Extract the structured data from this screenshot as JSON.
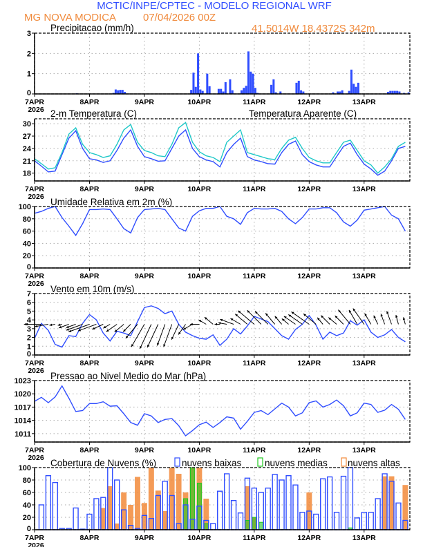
{
  "header": {
    "title": "MCTIC/INPE/CPTEC - MODELO REGIONAL WRF",
    "location": "MG NOVA MODICA",
    "run": "07/04/2026 00Z",
    "coords": "41.5014W 18.4372S 342m"
  },
  "colors": {
    "title": "#2f4dff",
    "location": "#f08a3c",
    "blue": "#2f4dff",
    "cyan": "#1fc8c8",
    "green": "#1ec81e",
    "orange": "#f28a3a",
    "grid": "#aaaaaa"
  },
  "x_axis": {
    "labels": [
      "7APR",
      "8APR",
      "9APR",
      "10APR",
      "11APR",
      "12APR",
      "13APR"
    ],
    "year": "2026",
    "time_start": "2026-04-07 00Z",
    "xlim_hours": [
      0,
      164
    ]
  },
  "chart_data": [
    {
      "type": "bar",
      "title": "Precipitacao (mm/h)",
      "ylim": [
        0,
        3
      ],
      "yticks": [
        0,
        1,
        2,
        3
      ],
      "grid": true,
      "interval_hours": 1,
      "values_by_hour": [
        [
          18,
          0.03
        ],
        [
          34,
          0.05
        ],
        [
          35,
          0.22
        ],
        [
          36,
          0.18
        ],
        [
          37,
          0.2
        ],
        [
          38,
          0.2
        ],
        [
          39,
          0.1
        ],
        [
          68,
          0.2
        ],
        [
          69,
          1.05
        ],
        [
          70,
          0.35
        ],
        [
          71,
          2.0
        ],
        [
          72,
          0.22
        ],
        [
          73,
          0.15
        ],
        [
          75,
          1.0
        ],
        [
          76,
          0.38
        ],
        [
          80,
          0.25
        ],
        [
          81,
          0.25
        ],
        [
          82,
          0.12
        ],
        [
          83,
          0.58
        ],
        [
          85,
          0.72
        ],
        [
          86,
          0.18
        ],
        [
          90,
          0.18
        ],
        [
          91,
          0.3
        ],
        [
          92,
          0.4
        ],
        [
          93,
          2.1
        ],
        [
          94,
          1.1
        ],
        [
          95,
          1.0
        ],
        [
          96,
          0.3
        ],
        [
          97,
          0.05
        ],
        [
          103,
          0.45
        ],
        [
          104,
          0.72
        ],
        [
          105,
          0.08
        ],
        [
          107,
          0.12
        ],
        [
          114,
          0.55
        ],
        [
          115,
          0.65
        ],
        [
          116,
          0.18
        ],
        [
          117,
          0.12
        ],
        [
          130,
          0.08
        ],
        [
          132,
          0.12
        ],
        [
          133,
          0.12
        ],
        [
          134,
          0.18
        ],
        [
          137,
          0.15
        ],
        [
          138,
          1.2
        ],
        [
          139,
          0.5
        ],
        [
          140,
          0.35
        ],
        [
          141,
          0.55
        ],
        [
          154,
          0.1
        ],
        [
          155,
          0.15
        ],
        [
          156,
          0.15
        ],
        [
          157,
          0.15
        ],
        [
          158,
          0.15
        ],
        [
          159,
          0.12
        ],
        [
          161,
          0.05
        ],
        [
          163,
          0.08
        ]
      ]
    },
    {
      "type": "line",
      "title": "2-m Temperatura (C)",
      "ylim": [
        16.1,
        31.2
      ],
      "yticks": [
        18,
        21,
        24,
        27,
        30
      ],
      "grid": true,
      "interval_hours": 3,
      "series": [
        {
          "name": "2-m Temperatura (C)",
          "color": "blue",
          "values": [
            21,
            19.7,
            18.3,
            18.5,
            22.5,
            26.5,
            28.3,
            24,
            21.5,
            21.2,
            20.6,
            21,
            23.5,
            26.5,
            28.5,
            24.5,
            22,
            21.5,
            20.9,
            21,
            24,
            27,
            28.5,
            24,
            22,
            21.2,
            20.8,
            19.5,
            23,
            25,
            26.5,
            22,
            21.2,
            20.8,
            20.3,
            20.2,
            23,
            25,
            25.8,
            22.5,
            20.8,
            20,
            19.5,
            19.5,
            22,
            24.5,
            25.3,
            22.5,
            20.2,
            19,
            17.5,
            18.5,
            21,
            24,
            24.5
          ]
        },
        {
          "name": "Temperatura Aparente (C)",
          "color": "cyan",
          "values": [
            21.5,
            20.3,
            19,
            19.3,
            23,
            27.5,
            29,
            25,
            23,
            22.5,
            21.8,
            22.2,
            25,
            28.5,
            29.8,
            25.5,
            23.5,
            23,
            22.2,
            22,
            25,
            29,
            30.3,
            25.5,
            23.2,
            22.2,
            21.8,
            20.8,
            25.5,
            27,
            28.5,
            23,
            22.5,
            22,
            21.5,
            21.3,
            24,
            26,
            26.7,
            24,
            21.8,
            21,
            20.5,
            20.5,
            23,
            25.5,
            26,
            23.5,
            21,
            20,
            18,
            19.5,
            21.5,
            24.5,
            25.5
          ]
        }
      ]
    },
    {
      "type": "line",
      "title": "Umidade Relativa em 2m (%)",
      "ylim": [
        0,
        100
      ],
      "yticks": [
        0,
        20,
        40,
        60,
        80,
        100
      ],
      "grid": true,
      "interval_hours": 3,
      "series": [
        {
          "color": "blue",
          "values": [
            89,
            92,
            97,
            100,
            82,
            68,
            53,
            72,
            95,
            95,
            96,
            95,
            80,
            64,
            57,
            82,
            95,
            96,
            97,
            95,
            80,
            65,
            60,
            84,
            93,
            97,
            97,
            100,
            84,
            80,
            71,
            90,
            97,
            96,
            96,
            97,
            92,
            80,
            72,
            82,
            96,
            96,
            98,
            98,
            90,
            75,
            68,
            78,
            94,
            96,
            98,
            100,
            86,
            80,
            60
          ]
        }
      ]
    },
    {
      "type": "line",
      "title": "Vento em 10m (m/s)",
      "ylim": [
        0,
        7
      ],
      "yticks": [
        0,
        1,
        2,
        3,
        4,
        5,
        6,
        7
      ],
      "grid": true,
      "interval_hours": 3,
      "series": [
        {
          "color": "blue",
          "values": [
            1.9,
            3.6,
            2.8,
            1.2,
            0.9,
            2.2,
            2.1,
            3.6,
            4.6,
            4,
            2.5,
            1.6,
            2.7,
            2.5,
            2.2,
            3.8,
            5.4,
            5.6,
            5.3,
            4.7,
            5,
            3.5,
            2.6,
            2.2,
            1.9,
            1.8,
            2.3,
            1.1,
            1.8,
            3,
            2.4,
            3.3,
            4.4,
            4.1,
            3.8,
            3,
            2.2,
            1.8,
            2.9,
            3.5,
            4.5,
            3.4,
            1.8,
            2.6,
            2.2,
            2.5,
            3.9,
            3.4,
            4,
            2.6,
            2,
            2.3,
            2.9,
            2,
            1.5
          ]
        }
      ],
      "wind_direction_from_deg": [
        90,
        90,
        80,
        80,
        75,
        70,
        70,
        70,
        70,
        70,
        65,
        60,
        55,
        50,
        45,
        40,
        30,
        25,
        25,
        20,
        20,
        25,
        35,
        60,
        90,
        120,
        130,
        90,
        100,
        110,
        120,
        130,
        130,
        135,
        135,
        140,
        140,
        130,
        125,
        125,
        125,
        130,
        140,
        135,
        130,
        135,
        140,
        150,
        145,
        150,
        155,
        160,
        160,
        165,
        165
      ],
      "arrow_baseline": 3.5
    },
    {
      "type": "line",
      "title": "Pressao ao Nivel Medio do Mar (hPa)",
      "ylim": [
        1009.1,
        1023
      ],
      "yticks": [
        1011,
        1014,
        1017,
        1020,
        1023
      ],
      "grid": true,
      "interval_hours": 3,
      "series": [
        {
          "color": "blue",
          "values": [
            1018.3,
            1019.2,
            1018.0,
            1019.3,
            1021.8,
            1019,
            1016,
            1016.2,
            1017.8,
            1017.8,
            1018.2,
            1017.2,
            1017.3,
            1015.5,
            1013.5,
            1012.9,
            1015.5,
            1015,
            1013.5,
            1014.2,
            1014.4,
            1012.8,
            1010.5,
            1011.7,
            1013,
            1013.6,
            1012.4,
            1013.5,
            1014.8,
            1014.5,
            1012,
            1013.8,
            1015.8,
            1016.2,
            1015.3,
            1016.6,
            1017.9,
            1017,
            1015,
            1015.7,
            1018,
            1018.4,
            1017,
            1017.6,
            1018.6,
            1017.3,
            1015,
            1015.7,
            1017.9,
            1017.6,
            1015.8,
            1016.3,
            1017.6,
            1016.5,
            1014.2
          ]
        }
      ]
    },
    {
      "type": "bar",
      "title": "Cobertura de Nuvens (%)",
      "ylim": [
        0,
        100
      ],
      "yticks": [
        0,
        20,
        40,
        60,
        80,
        100
      ],
      "grid": true,
      "interval_hours": 3,
      "legend": "top",
      "series": [
        {
          "name": "nuvens altas",
          "color": "orange",
          "values": [
            0,
            0,
            0,
            0,
            0,
            0,
            0,
            0,
            0,
            0,
            35,
            70,
            10,
            60,
            40,
            85,
            43,
            100,
            63,
            30,
            100,
            90,
            60,
            100,
            100,
            50,
            0,
            0,
            0,
            0,
            0,
            70,
            20,
            0,
            0,
            0,
            0,
            0,
            0,
            0,
            60,
            0,
            0,
            0,
            0,
            0,
            0,
            0,
            0,
            0,
            0,
            86,
            86,
            0,
            72
          ]
        },
        {
          "name": "nuvens medias",
          "color": "green",
          "values": [
            0,
            0,
            0,
            0,
            0,
            0,
            0,
            0,
            0,
            0,
            0,
            0,
            0,
            0,
            0,
            0,
            0,
            0,
            0,
            0,
            0,
            0,
            50,
            100,
            75,
            10,
            0,
            0,
            0,
            0,
            0,
            15,
            20,
            12,
            0,
            0,
            0,
            0,
            0,
            0,
            0,
            0,
            0,
            0,
            0,
            0,
            3,
            0,
            0,
            0,
            0,
            0,
            0,
            0,
            0
          ]
        },
        {
          "name": "nuvens baixas",
          "color": "blue",
          "values": [
            0,
            40,
            87,
            76,
            2,
            2,
            35,
            1,
            25,
            50,
            52,
            100,
            80,
            32,
            7,
            2,
            23,
            18,
            55,
            78,
            55,
            10,
            40,
            17,
            38,
            15,
            10,
            62,
            90,
            47,
            27,
            83,
            67,
            60,
            67,
            89,
            80,
            87,
            72,
            28,
            30,
            25,
            82,
            85,
            28,
            86,
            100,
            19,
            28,
            28,
            50,
            90,
            78,
            43,
            15
          ]
        }
      ]
    }
  ]
}
